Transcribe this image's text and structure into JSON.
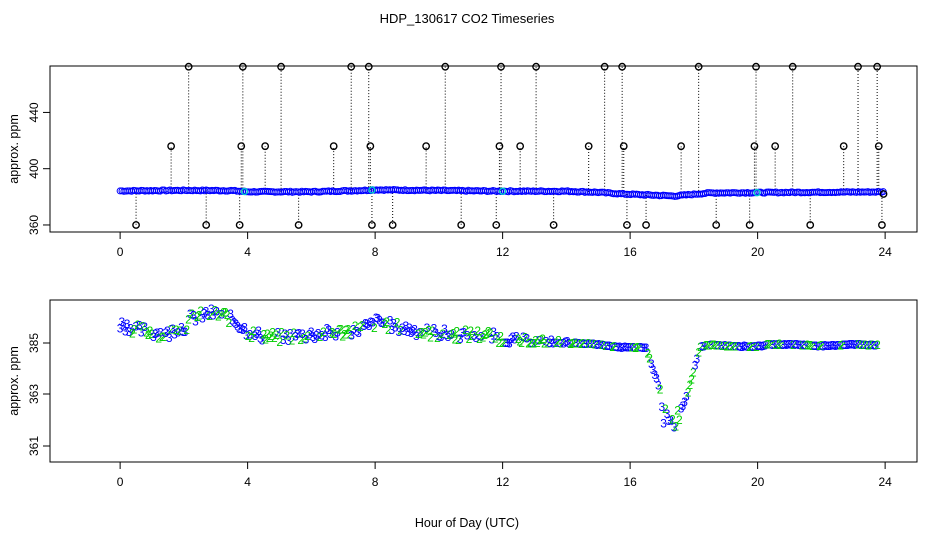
{
  "chart_data": {
    "title": "HDP_130617  CO2 Timeseries",
    "xlabel": "Hour of Day (UTC)",
    "panels": [
      {
        "type": "scatter",
        "ylabel": "approx. ppm",
        "xlim": [
          -2.2,
          25
        ],
        "ylim": [
          355,
          473
        ],
        "xticks": [
          0,
          4,
          8,
          12,
          16,
          20,
          24
        ],
        "yticks": [
          360,
          400,
          440
        ],
        "colors": {
          "raw": "#000000",
          "series": "#0000ff",
          "flag": "#00cccc"
        },
        "baseline": [
          [
            0.0,
            384.2
          ],
          [
            2.0,
            384.6
          ],
          [
            3.5,
            384.4
          ],
          [
            4.0,
            383.6
          ],
          [
            6.0,
            383.6
          ],
          [
            7.7,
            384.6
          ],
          [
            8.0,
            385.0
          ],
          [
            12.0,
            384.0
          ],
          [
            14.0,
            384.0
          ],
          [
            15.0,
            383.2
          ],
          [
            15.8,
            382.0
          ],
          [
            17.4,
            380.6
          ],
          [
            18.5,
            382.8
          ],
          [
            20.0,
            383.0
          ],
          [
            22.0,
            383.3
          ],
          [
            24.0,
            383.5
          ]
        ],
        "spikes_high": [
          2.15,
          3.85,
          5.05,
          7.25,
          7.8,
          10.2,
          11.95,
          13.05,
          15.2,
          15.75,
          18.15,
          19.95,
          21.1,
          23.15,
          23.75
        ],
        "spikes_mid": [
          1.6,
          3.8,
          4.55,
          6.7,
          7.85,
          9.6,
          11.9,
          12.55,
          14.7,
          15.8,
          17.6,
          19.9,
          20.55,
          22.7,
          23.8
        ],
        "spikes_low": [
          0.5,
          2.7,
          3.75,
          5.6,
          7.9,
          8.55,
          10.7,
          11.8,
          13.6,
          15.9,
          16.5,
          18.7,
          19.75,
          21.65,
          23.9
        ],
        "flags": [
          3.9,
          7.9,
          12.0,
          19.98
        ],
        "last_point": [
          23.95,
          382.0
        ]
      },
      {
        "type": "scatter",
        "ylabel": "approx. ppm",
        "xlim": [
          -2.2,
          25
        ],
        "ylim": [
          360.3,
          386.6
        ],
        "xticks": [
          0,
          4,
          8,
          12,
          16,
          20,
          24
        ],
        "yticks": [
          361,
          363,
          385
        ],
        "point_labels": [
          "2",
          "3"
        ],
        "colors": {
          "label_2": "#00cc00",
          "label_3": "#0000ff"
        },
        "curve": [
          [
            0.0,
            385.7
          ],
          [
            0.5,
            385.5
          ],
          [
            1.0,
            385.4
          ],
          [
            1.5,
            385.3
          ],
          [
            1.8,
            385.6
          ],
          [
            2.0,
            385.5
          ],
          [
            2.2,
            385.9
          ],
          [
            2.5,
            386.0
          ],
          [
            2.9,
            386.1
          ],
          [
            3.3,
            386.0
          ],
          [
            3.6,
            385.8
          ],
          [
            3.9,
            385.5
          ],
          [
            4.2,
            385.3
          ],
          [
            5.0,
            385.2
          ],
          [
            6.0,
            385.3
          ],
          [
            7.0,
            385.4
          ],
          [
            7.8,
            385.6
          ],
          [
            8.1,
            385.8
          ],
          [
            8.6,
            385.6
          ],
          [
            9.5,
            385.4
          ],
          [
            10.5,
            385.3
          ],
          [
            11.5,
            385.3
          ],
          [
            12.0,
            385.1
          ],
          [
            13.0,
            385.0
          ],
          [
            14.0,
            384.9
          ],
          [
            14.8,
            384.5
          ],
          [
            15.3,
            383.7
          ],
          [
            15.7,
            383.1
          ],
          [
            16.0,
            383.2
          ],
          [
            16.5,
            382.7
          ],
          [
            17.0,
            362.3
          ],
          [
            17.4,
            361.7
          ],
          [
            17.8,
            362.6
          ],
          [
            18.2,
            383.5
          ],
          [
            18.6,
            384.1
          ],
          [
            19.0,
            383.8
          ],
          [
            19.5,
            383.5
          ],
          [
            20.0,
            383.4
          ],
          [
            20.3,
            384.2
          ],
          [
            20.8,
            384.3
          ],
          [
            21.3,
            384.2
          ],
          [
            21.8,
            383.8
          ],
          [
            22.2,
            383.6
          ],
          [
            22.7,
            384.2
          ],
          [
            23.2,
            384.3
          ],
          [
            23.7,
            384.0
          ]
        ]
      }
    ]
  }
}
